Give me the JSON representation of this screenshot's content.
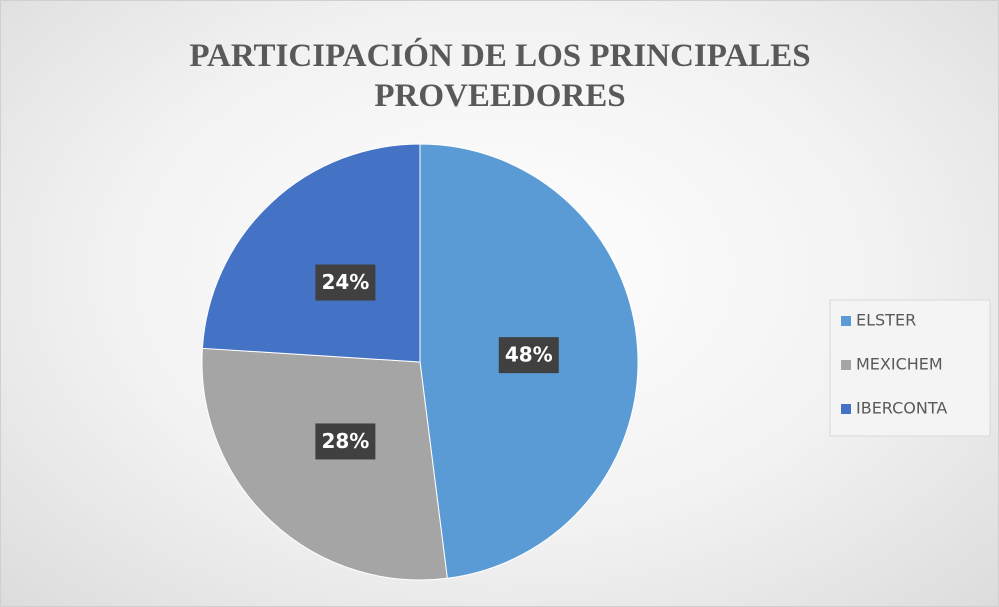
{
  "chart_data": {
    "type": "pie",
    "title": "PARTICIPACIÓN DE LOS PRINCIPALES PROVEEDORES",
    "categories": [
      "ELSTER",
      "MEXICHEM",
      "IBERCONTA"
    ],
    "values": [
      48,
      28,
      24
    ],
    "value_labels": [
      "48%",
      "28%",
      "24%"
    ],
    "colors": [
      "#5b9bd5",
      "#a5a5a5",
      "#4472c4"
    ],
    "legend": "right"
  }
}
